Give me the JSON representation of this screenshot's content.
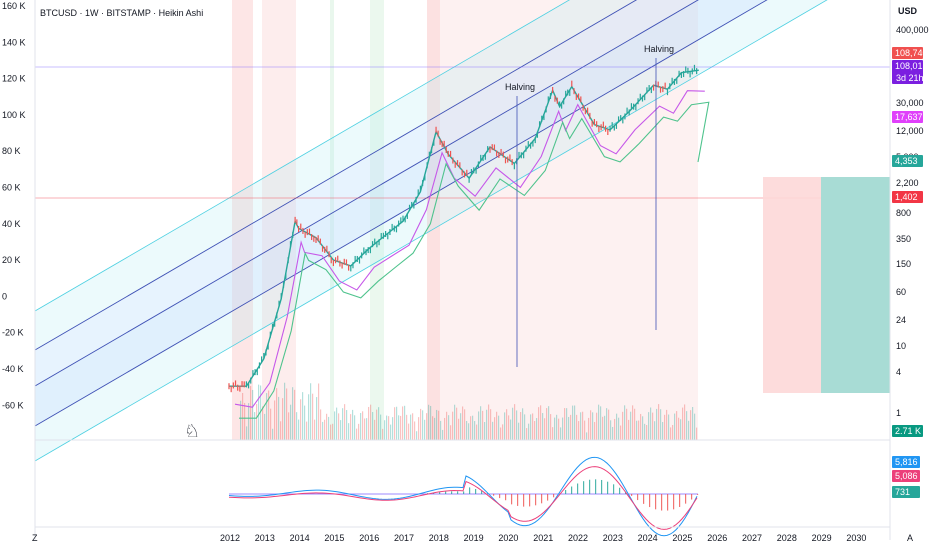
{
  "header": {
    "title": "BTCUSD · 1W · BITSTAMP · Heikin Ashi"
  },
  "axis": {
    "currency_label": "USD",
    "left_ticks": [
      "160 K",
      "140 K",
      "120 K",
      "100 K",
      "80 K",
      "60 K",
      "40 K",
      "20 K",
      "0",
      "-20 K",
      "-40 K",
      "-60 K"
    ],
    "right_ticks": [
      "400,000",
      "30,000",
      "12,000",
      "5,000",
      "2,200",
      "800",
      "350",
      "150",
      "60",
      "24",
      "10",
      "4",
      "1"
    ],
    "x_ticks": [
      "2012",
      "2013",
      "2014",
      "2015",
      "2016",
      "2017",
      "2018",
      "2019",
      "2020",
      "2021",
      "2022",
      "2023",
      "2024",
      "2025",
      "2026",
      "2027",
      "2028",
      "2029",
      "2030"
    ],
    "corner_left": "Z",
    "corner_right": "A"
  },
  "annotations": [
    {
      "label": "Halving"
    },
    {
      "label": "Halving"
    }
  ],
  "price_badges": [
    {
      "label": "108,740",
      "color": "#f0504f"
    },
    {
      "label": "108,015",
      "sub": "3d 21h",
      "color": "#7b1fe0"
    },
    {
      "label": "17,637",
      "color": "#e040fb"
    },
    {
      "label": "4,353",
      "color": "#26a69a"
    },
    {
      "label": "1,402",
      "color": "#f23645"
    },
    {
      "label": "2.71 K",
      "color": "#089981"
    }
  ],
  "oscillator_badges": [
    {
      "label": "5,816",
      "color": "#2196f3"
    },
    {
      "label": "5,086",
      "color": "#ec407a"
    },
    {
      "label": "731",
      "color": "#26a69a"
    }
  ],
  "colors": {
    "up": "#26a69a",
    "down": "#ef5350",
    "channel_line": "#3f51b5",
    "outer_line": "#4dd0e1",
    "ma_purple": "#c658e9",
    "ma_green": "#4fc38d",
    "macd_blue": "#2196f3",
    "signal_pink": "#ec407a"
  },
  "chart_data": {
    "type": "line",
    "title": "BTCUSD · 1W · BITSTAMP · Heikin Ashi",
    "scale": "log",
    "ylim": [
      1,
      400000
    ],
    "x": [
      2012.0,
      2012.5,
      2013.0,
      2013.5,
      2013.9,
      2014.0,
      2014.5,
      2015.0,
      2015.5,
      2016.0,
      2016.5,
      2017.0,
      2017.5,
      2017.95,
      2018.3,
      2018.9,
      2019.5,
      2020.2,
      2020.8,
      2021.3,
      2021.5,
      2021.85,
      2022.5,
      2022.95,
      2023.5,
      2024.2,
      2024.6,
      2025.0,
      2025.5
    ],
    "series": [
      {
        "values": [
          6,
          6,
          14,
          90,
          1000,
          800,
          600,
          300,
          250,
          420,
          650,
          1000,
          2500,
          16000,
          8000,
          3800,
          10000,
          6000,
          13000,
          58000,
          35000,
          65000,
          20000,
          17000,
          30000,
          68000,
          60000,
          100000,
          108000
        ]
      }
    ],
    "halvings": [
      2020.4,
      2024.3
    ]
  }
}
